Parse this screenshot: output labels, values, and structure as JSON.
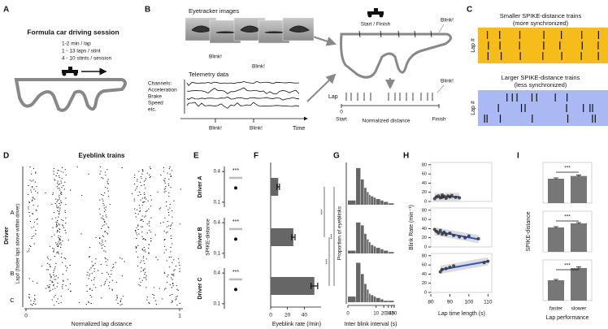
{
  "panel_labels": [
    "A",
    "B",
    "C",
    "D",
    "E",
    "F",
    "G",
    "H",
    "I"
  ],
  "panel_a": {
    "title": "Formula car driving session",
    "details": [
      "1-2 min / lap",
      "1 - 13 laps / stint",
      "4 - 10 stints / session"
    ]
  },
  "panel_b": {
    "eyetracker_title": "Eyetracker images",
    "image_blinks": [
      "Blink!",
      "Blink!"
    ],
    "telemetry_title": "Telemetry data",
    "channels": [
      "Channels:",
      "Acceleration",
      "Brake",
      "Speed",
      "etc."
    ],
    "telemetry_blinks": [
      "Blink!",
      "Blink!"
    ],
    "time_label": "Time",
    "start_finish": "Start / Finish",
    "track_blink": "Blink!",
    "lap_label": "Lap",
    "lap_blink": "Blink!",
    "start_value": "0",
    "start_label": "Start",
    "distance_label": "Normalized distance",
    "finish_label": "Finish"
  },
  "panel_c": {
    "top": {
      "title": [
        "Smaller SPIKE-distance trains",
        "(more synchronized)"
      ],
      "ylabel": "Lap #",
      "color": "#f6bd1a"
    },
    "bottom": {
      "title": [
        "Larger SPIKE-distance trains",
        "(less synchronized)"
      ],
      "ylabel": "Lap #",
      "color": "#aab9f4"
    }
  },
  "panel_d": {
    "title": "Eyeblink trains",
    "ylabel": "Driver",
    "drivers": [
      "A",
      "B",
      "C"
    ],
    "lap_label": "Lap# (faster laps above within driver)",
    "xlabel": "Normalized lap distance",
    "xticks": [
      0,
      1
    ]
  },
  "panel_e": {
    "ylabel": "SPIKE-distance",
    "ylim": [
      0.08,
      0.5
    ],
    "log_scale": true,
    "panels": [
      {
        "driver": "Driver A",
        "significance": "***",
        "surrogate": 0.3,
        "observed": 0.19,
        "yticks": [
          0.1,
          0.4
        ]
      },
      {
        "driver": "Driver B",
        "significance": "***",
        "surrogate": 0.3,
        "observed": 0.19,
        "yticks": [
          0.1,
          0.4
        ]
      },
      {
        "driver": "Driver C",
        "significance": "***",
        "surrogate": 0.3,
        "observed": 0.19,
        "yticks": [
          0.1,
          0.4
        ]
      }
    ]
  },
  "panel_f": {
    "xlabel": "Eyeblink rate (/min)",
    "xlim": [
      0,
      60
    ],
    "xticks": [
      0,
      20,
      40
    ],
    "color": "#666666",
    "values": [
      9,
      27,
      52
    ],
    "errors": [
      1.5,
      2,
      4
    ],
    "significance": [
      "***",
      "***",
      "***"
    ]
  },
  "panel_g": {
    "xlabel": "Inter blink interval (s)",
    "ylabel": "Proportion of eyeblinks",
    "xlim": [
      0,
      50
    ],
    "xticks": [
      0,
      10,
      20,
      30,
      40,
      50
    ],
    "x_scale": "log1p",
    "ylim": [
      0,
      0.3
    ],
    "color": "#666666",
    "bins": [
      0,
      1,
      2,
      3,
      4,
      5,
      6,
      8,
      10,
      15,
      20,
      30,
      50
    ],
    "histograms": [
      [
        0.03,
        0.26,
        0.18,
        0.12,
        0.09,
        0.07,
        0.06,
        0.05,
        0.04,
        0.03,
        0.02,
        0.01
      ],
      [
        0.02,
        0.22,
        0.2,
        0.14,
        0.1,
        0.08,
        0.06,
        0.05,
        0.04,
        0.03,
        0.02,
        0.01
      ],
      [
        0.04,
        0.28,
        0.2,
        0.13,
        0.09,
        0.06,
        0.05,
        0.04,
        0.03,
        0.02,
        0.01,
        0.01
      ]
    ]
  },
  "panel_h": {
    "ylabel": "Blink Rate (min⁻¹)",
    "xlabel": "Lap time length (s)",
    "xlim": [
      80,
      112
    ],
    "xticks": [
      80,
      90,
      100,
      110
    ],
    "ylim": [
      0,
      85
    ],
    "point_color": "#333333",
    "fit_color": "#2f55d4",
    "panels": [
      {
        "yticks": [
          0,
          20,
          40,
          60,
          80
        ],
        "x": [
          82,
          83,
          84,
          85,
          86,
          86,
          87,
          88,
          89,
          90,
          91,
          93,
          95
        ],
        "y": [
          6,
          10,
          12,
          8,
          14,
          9,
          11,
          7,
          12,
          10,
          13,
          9,
          8
        ]
      },
      {
        "yticks": [
          0,
          20,
          40,
          60,
          80
        ],
        "x": [
          82,
          83,
          84,
          85,
          86,
          87,
          88,
          90,
          92,
          95,
          98,
          100,
          105
        ],
        "y": [
          38,
          34,
          30,
          36,
          28,
          32,
          27,
          30,
          25,
          22,
          20,
          24,
          18
        ]
      },
      {
        "yticks": [
          0,
          20,
          40,
          60,
          80
        ],
        "x": [
          85,
          86,
          88,
          90,
          92,
          108,
          110
        ],
        "y": [
          45,
          50,
          52,
          55,
          58,
          65,
          68
        ]
      }
    ]
  },
  "panel_i": {
    "ylabel": "SPIKE-distance",
    "xlabel": "Lap performance",
    "categories": [
      "faster",
      "slower"
    ],
    "ylim": [
      0,
      0.3
    ],
    "color": "#777777",
    "panels": [
      {
        "values": [
          0.18,
          0.2
        ],
        "errors": [
          0.006,
          0.006
        ],
        "significance": "***"
      },
      {
        "values": [
          0.18,
          0.21
        ],
        "errors": [
          0.006,
          0.006
        ],
        "significance": "***"
      },
      {
        "values": [
          0.15,
          0.24
        ],
        "errors": [
          0.006,
          0.008
        ],
        "significance": "***"
      }
    ]
  }
}
